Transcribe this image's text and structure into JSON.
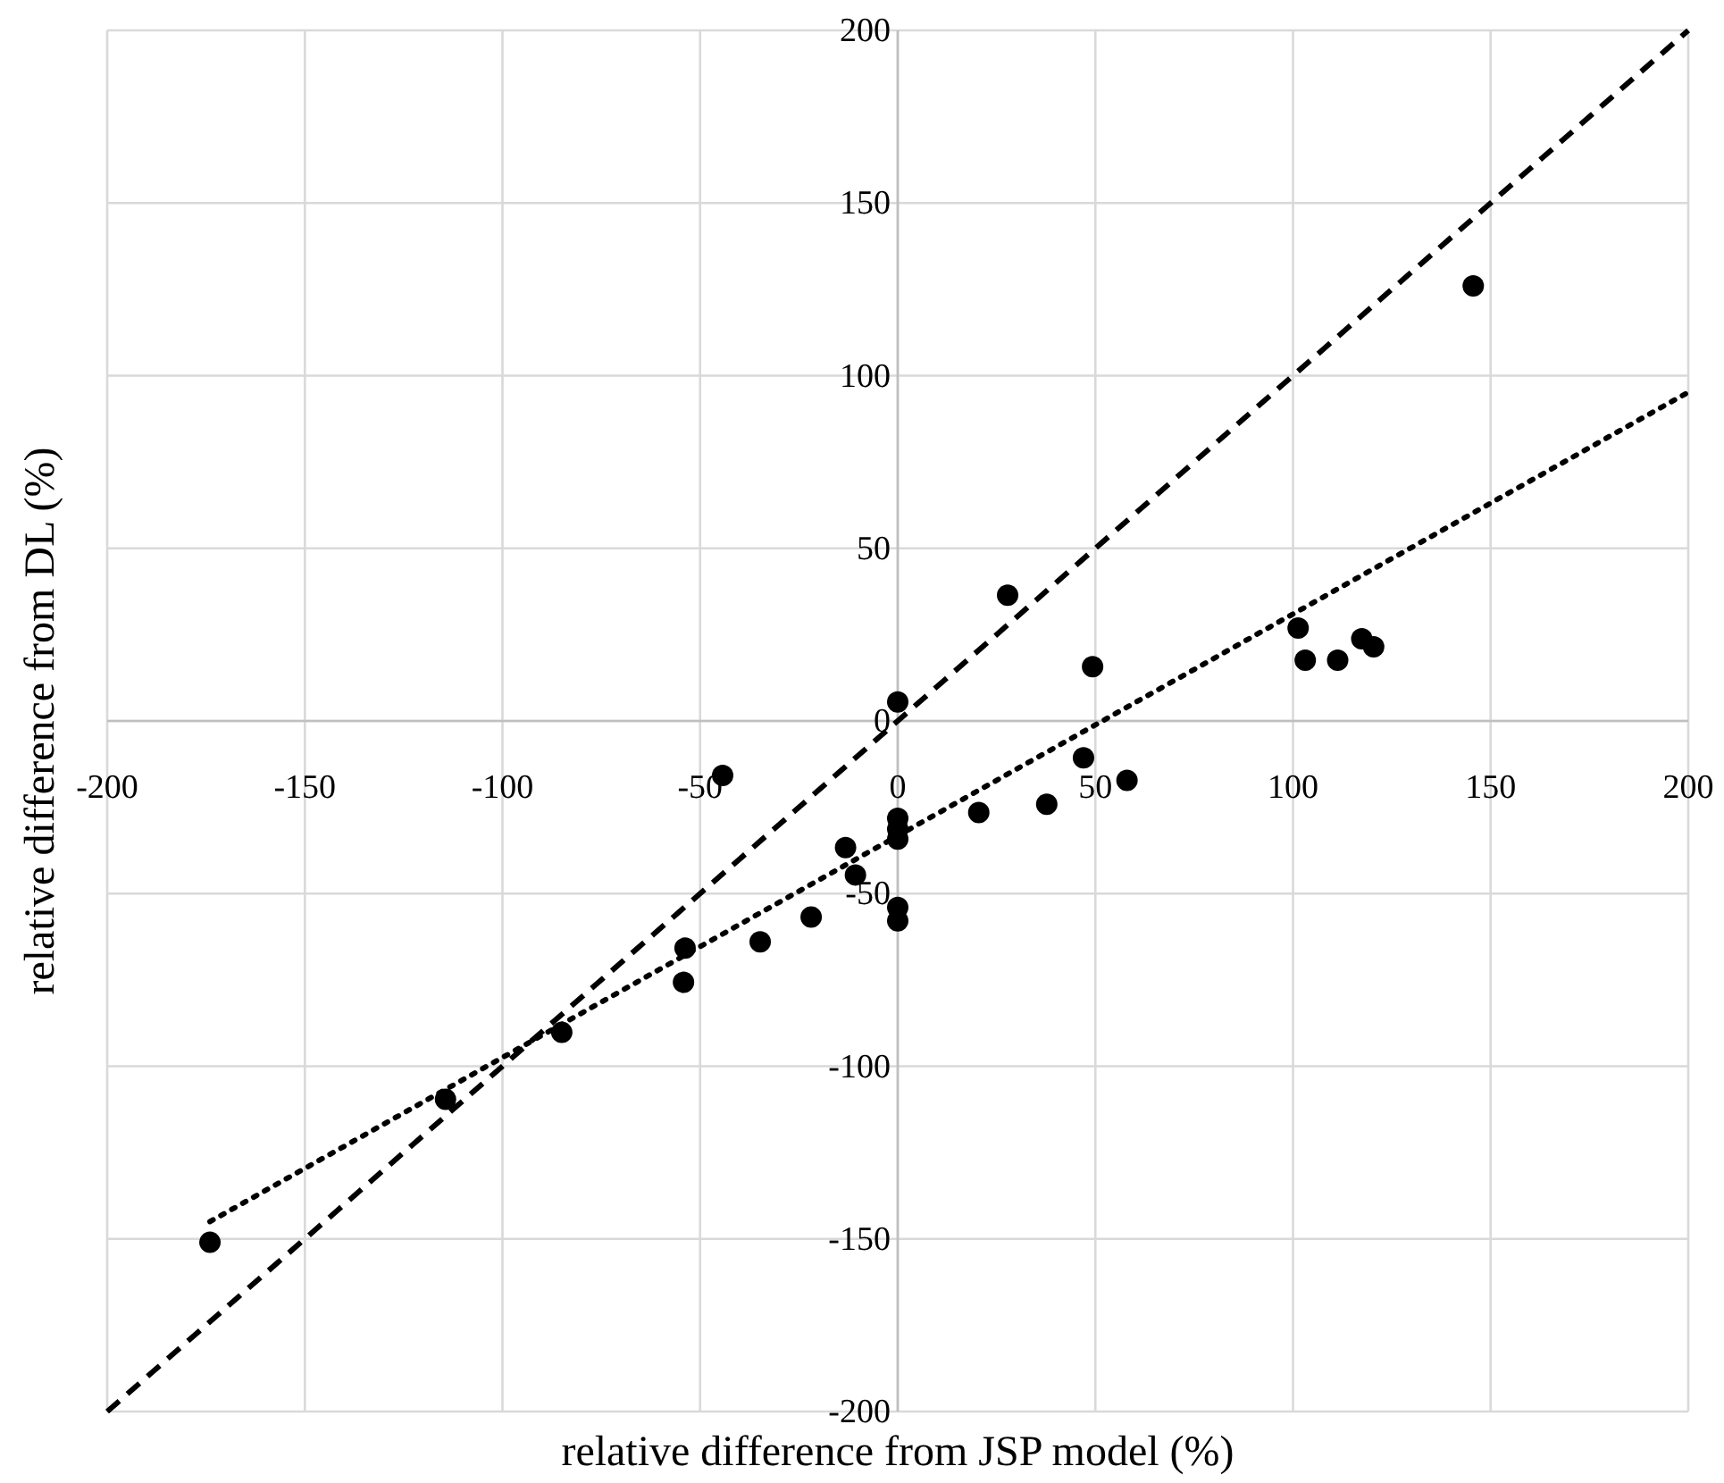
{
  "chart_data": {
    "type": "scatter",
    "xlabel": "relative difference from JSP model (%)",
    "ylabel": "relative difference from DL (%)",
    "xlim": [
      -200,
      200
    ],
    "ylim": [
      -200,
      200
    ],
    "xticks": [
      -200,
      -150,
      -100,
      -50,
      0,
      50,
      100,
      150,
      200
    ],
    "yticks": [
      -200,
      -150,
      -100,
      -50,
      0,
      50,
      100,
      150,
      200
    ],
    "grid": true,
    "series": [
      {
        "color": "#000000",
        "marker": "circle",
        "x": [
          -174,
          -114.4,
          -85,
          27.8,
          49.3,
          0,
          -44.3,
          47,
          58,
          20.5,
          37.7,
          0,
          0,
          0,
          -13.2,
          -10.7,
          0,
          0,
          -21.9,
          -34.8,
          -53.8,
          -54.2,
          145.6,
          101.3,
          103.1,
          111.3,
          117.4,
          120.4
        ],
        "values": [
          -151,
          -109.6,
          -90.2,
          36.4,
          15.7,
          5.5,
          -15.8,
          -10.7,
          -17.2,
          -26.5,
          -24.1,
          -28.2,
          -31.3,
          -34.2,
          -36.7,
          -44.6,
          -54,
          -57.9,
          -56.8,
          -64,
          -65.8,
          -75.7,
          126,
          26.9,
          17.6,
          17.6,
          23.8,
          21.5
        ]
      },
      {
        "type": "line",
        "color": "#000000",
        "line_style": "dashed",
        "marker": "none",
        "x": [
          -200,
          200
        ],
        "values": [
          -200,
          200
        ]
      },
      {
        "type": "line",
        "color": "#000000",
        "line_style": "dotted",
        "marker": "none",
        "x": [
          -174,
          200
        ],
        "values": [
          -145,
          95.2
        ]
      }
    ]
  }
}
